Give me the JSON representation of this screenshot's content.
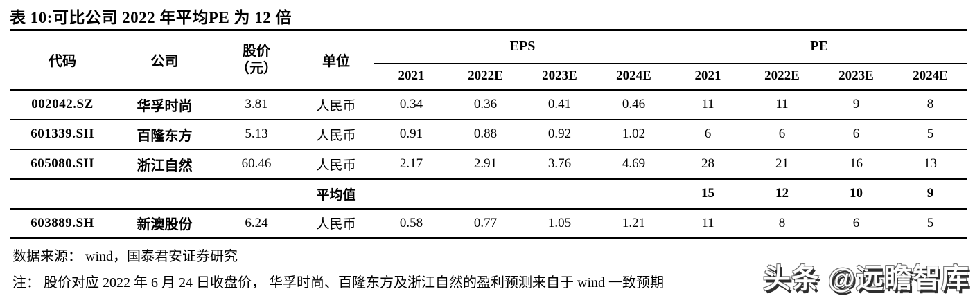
{
  "title": "表 10:可比公司 2022 年平均PE 为 12 倍",
  "table": {
    "headers": {
      "code": "代码",
      "company": "公司",
      "price_line1": "股价",
      "price_line2": "（元）",
      "unit": "单位",
      "eps_group": "EPS",
      "pe_group": "PE",
      "years": [
        "2021",
        "2022E",
        "2023E",
        "2024E",
        "2021",
        "2022E",
        "2023E",
        "2024E"
      ]
    },
    "rows": [
      {
        "code": "002042.SZ",
        "company": "华孚时尚",
        "price": "3.81",
        "unit": "人民币",
        "eps": [
          "0.34",
          "0.36",
          "0.41",
          "0.46"
        ],
        "pe": [
          "11",
          "11",
          "9",
          "8"
        ]
      },
      {
        "code": "601339.SH",
        "company": "百隆东方",
        "price": "5.13",
        "unit": "人民币",
        "eps": [
          "0.91",
          "0.88",
          "0.92",
          "1.02"
        ],
        "pe": [
          "6",
          "6",
          "6",
          "5"
        ]
      },
      {
        "code": "605080.SH",
        "company": "浙江自然",
        "price": "60.46",
        "unit": "人民币",
        "eps": [
          "2.17",
          "2.91",
          "3.76",
          "4.69"
        ],
        "pe": [
          "28",
          "21",
          "16",
          "13"
        ]
      },
      {
        "code": "",
        "company": "",
        "price": "",
        "unit": "平均值",
        "eps": [
          "",
          "",
          "",
          ""
        ],
        "pe": [
          "15",
          "12",
          "10",
          "9"
        ]
      },
      {
        "code": "603889.SH",
        "company": "新澳股份",
        "price": "6.24",
        "unit": "人民币",
        "eps": [
          "0.58",
          "0.77",
          "1.05",
          "1.21"
        ],
        "pe": [
          "11",
          "8",
          "6",
          "5"
        ]
      }
    ]
  },
  "footer": {
    "source": "数据来源： wind，国泰君安证券研究",
    "note": "注： 股价对应 2022 年 6 月 24 日收盘价， 华孚时尚、百隆东方及浙江自然的盈利预测来自于 wind 一致预期"
  },
  "watermark": "头条 @远瞻智库"
}
